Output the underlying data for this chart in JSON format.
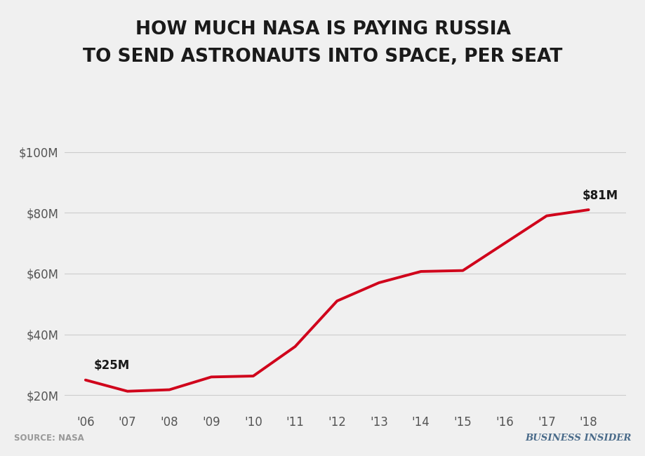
{
  "title_line1": "HOW MUCH NASA IS PAYING RUSSIA",
  "title_line2": "TO SEND ASTRONAUTS INTO SPACE, PER SEAT",
  "years": [
    2006,
    2007,
    2008,
    2009,
    2010,
    2011,
    2012,
    2013,
    2014,
    2015,
    2016,
    2017,
    2018
  ],
  "values": [
    25,
    21.3,
    21.8,
    26,
    26.3,
    36,
    51,
    57,
    60.7,
    61,
    70,
    79,
    81
  ],
  "line_color": "#d0021b",
  "background_color": "#f0f0f0",
  "plot_bg_color": "#f0f0f0",
  "grid_color": "#cccccc",
  "title_color": "#1a1a1a",
  "tick_color": "#555555",
  "label_first": "$25M",
  "label_last": "$81M",
  "ytick_labels": [
    "$20M",
    "$40M",
    "$60M",
    "$80M",
    "$100M"
  ],
  "ytick_values": [
    20,
    40,
    60,
    80,
    100
  ],
  "ylim": [
    15,
    108
  ],
  "xlim": [
    2005.5,
    2018.9
  ],
  "source_text": "SOURCE: NASA",
  "brand_text": "BUSINESS INSIDER",
  "source_color": "#999999",
  "brand_color": "#4a6b8a",
  "line_width": 2.8,
  "footer_bg_color": "#dcdcdc",
  "title_fontsize": 19,
  "tick_fontsize": 12
}
